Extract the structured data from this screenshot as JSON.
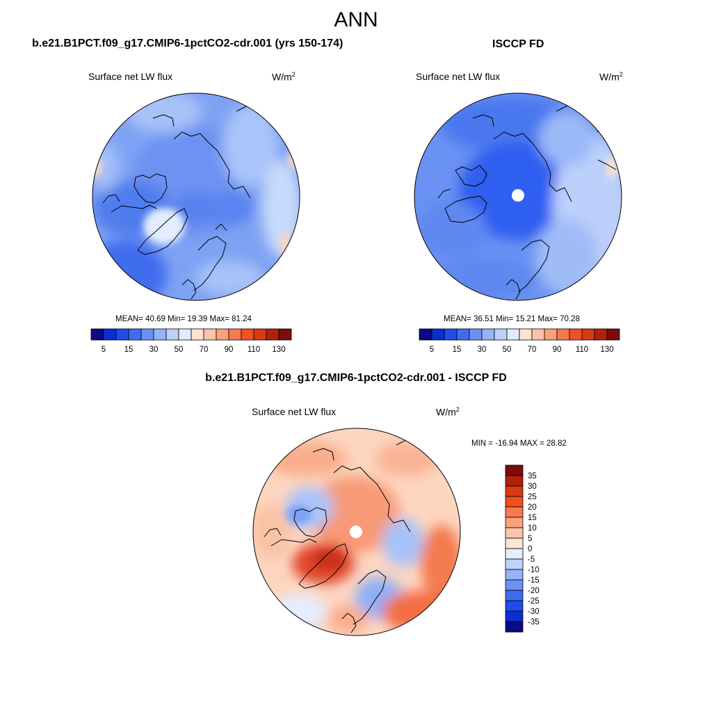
{
  "title": "ANN",
  "panels": [
    {
      "title": "b.e21.B1PCT.f09_g17.CMIP6-1pctCO2-cdr.001 (yrs 150-174)",
      "variable": "Surface net LW flux",
      "units_base": "W/m",
      "units_exp": "2",
      "stats": "MEAN=  40.69  Min=  19.39  Max=  81.24"
    },
    {
      "title": "ISCCP FD",
      "variable": "Surface net LW flux",
      "units_base": "W/m",
      "units_exp": "2",
      "stats": "MEAN=  36.51  Min=  15.21  Max=  70.28"
    },
    {
      "title": "b.e21.B1PCT.f09_g17.CMIP6-1pctCO2-cdr.001 - ISCCP FD",
      "variable": "Surface net LW flux",
      "units_base": "W/m",
      "units_exp": "2",
      "stats": "MIN = -16.94 MAX =  28.82"
    }
  ],
  "colorbar_horizontal": {
    "tick_labels": [
      "5",
      "15",
      "30",
      "50",
      "70",
      "90",
      "110",
      "130"
    ],
    "colors": [
      "#0a0a85",
      "#0a2ed0",
      "#1f4ce8",
      "#3f6cf0",
      "#6a92f4",
      "#93b3f8",
      "#bcd0fb",
      "#e2ecff",
      "#fde3d0",
      "#fcc4aa",
      "#faa07c",
      "#f47a50",
      "#ec5224",
      "#d73a14",
      "#b0220a",
      "#7c0b0b"
    ]
  },
  "colorbar_vertical": {
    "tick_labels": [
      "35",
      "30",
      "25",
      "20",
      "15",
      "10",
      "5",
      "0",
      "-5",
      "-10",
      "-15",
      "-20",
      "-25",
      "-30",
      "-35"
    ],
    "colors": [
      "#7c0b0b",
      "#b0220a",
      "#d73a14",
      "#f0501e",
      "#f57a4e",
      "#f9a37e",
      "#fcc6aa",
      "#fde5d5",
      "#e4eeff",
      "#bfd2fb",
      "#94b4f7",
      "#6a92f2",
      "#3f6cef",
      "#1f4ce8",
      "#0a2ed0",
      "#0a0a85"
    ]
  },
  "map": {
    "projection": "north-polar-stereographic",
    "coastlines": true,
    "missing_pole": true
  }
}
